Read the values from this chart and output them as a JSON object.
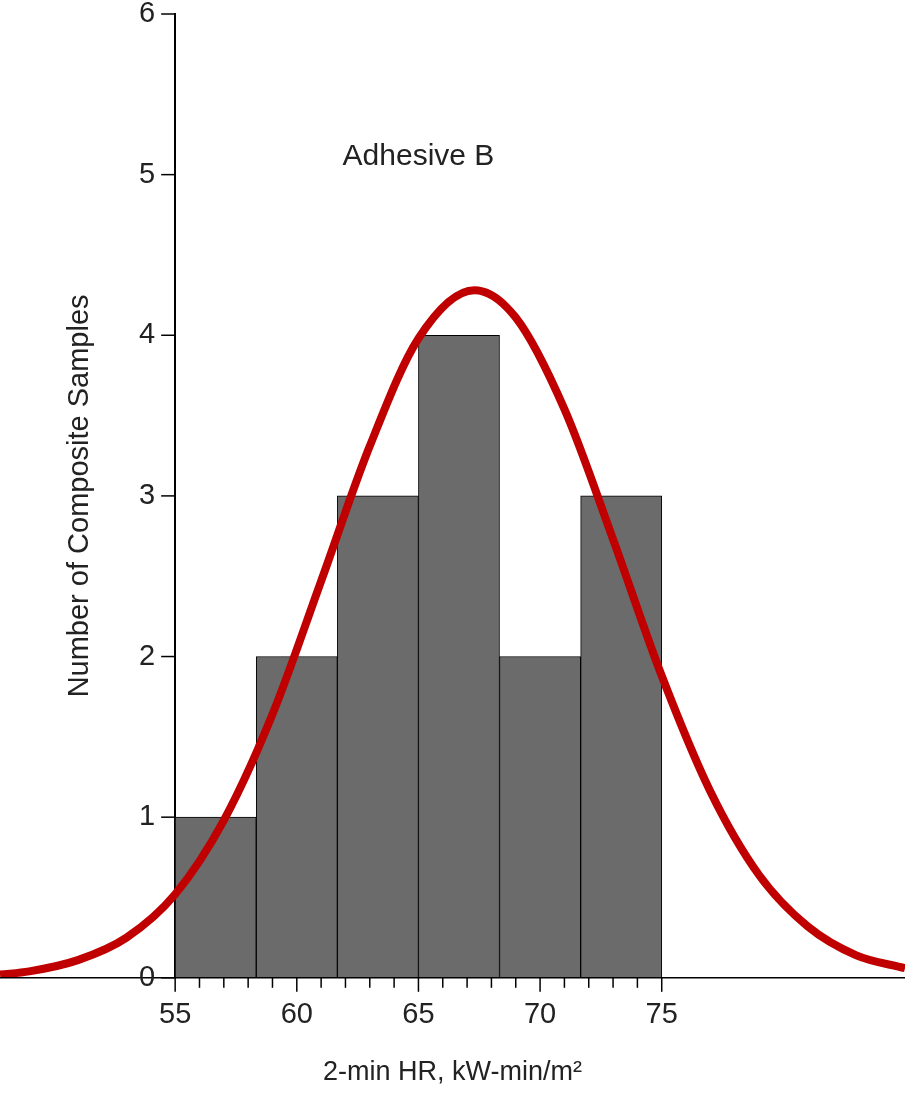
{
  "chart_data": {
    "type": "histogram",
    "title": "Adhesive B",
    "xlabel": "2-min HR, kW-min/m²",
    "ylabel": "Number of Composite Samples",
    "bins": [
      55,
      58.33,
      61.67,
      65,
      68.33,
      71.67,
      75
    ],
    "values": [
      1,
      2,
      3,
      4,
      2,
      3
    ],
    "color": "#6b6b6b",
    "series": [
      {
        "type": "line",
        "color": "#c00000",
        "x": [
          47.8,
          49,
          51,
          53,
          55,
          57,
          59,
          61,
          63,
          65,
          67.3,
          69,
          71,
          73,
          75,
          77,
          79,
          81,
          83,
          85
        ],
        "values": [
          0.02,
          0.04,
          0.11,
          0.25,
          0.52,
          0.98,
          1.64,
          2.47,
          3.31,
          3.98,
          4.28,
          4.11,
          3.54,
          2.73,
          1.88,
          1.16,
          0.64,
          0.32,
          0.14,
          0.06
        ]
      }
    ],
    "xlim": [
      47.8,
      85
    ],
    "ylim": [
      0,
      6
    ],
    "xticks": [
      55,
      {
        "value": 56,
        "label": null
      },
      {
        "value": 57,
        "label": null
      },
      {
        "value": 58,
        "label": null
      },
      {
        "value": 59,
        "label": null
      },
      60,
      {
        "value": 61,
        "label": null
      },
      {
        "value": 62,
        "label": null
      },
      {
        "value": 63,
        "label": null
      },
      {
        "value": 64,
        "label": null
      },
      65,
      {
        "value": 66,
        "label": null
      },
      {
        "value": 67,
        "label": null
      },
      {
        "value": 68,
        "label": null
      },
      {
        "value": 69,
        "label": null
      },
      70,
      {
        "value": 71,
        "label": null
      },
      {
        "value": 72,
        "label": null
      },
      {
        "value": 73,
        "label": null
      },
      {
        "value": 74,
        "label": null
      },
      75
    ],
    "yticks": [
      0,
      1,
      2,
      3,
      4,
      5,
      6
    ]
  }
}
